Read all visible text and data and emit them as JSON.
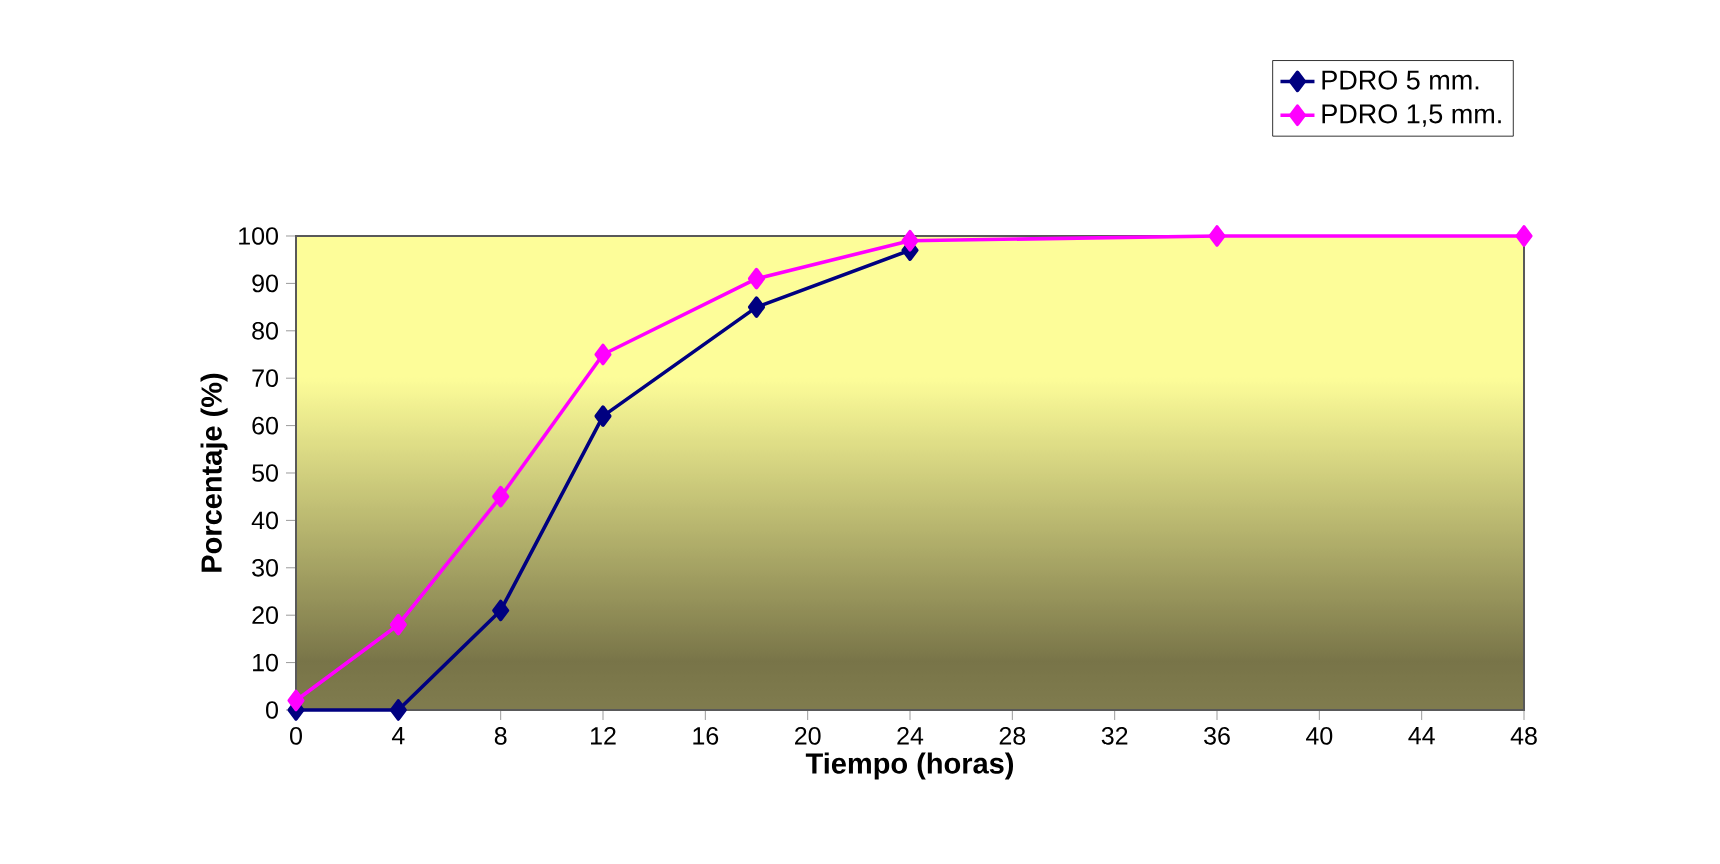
{
  "chart_data": {
    "type": "line",
    "xlabel": "Tiempo (horas)",
    "ylabel": "Porcentaje (%)",
    "x": [
      0,
      4,
      8,
      12,
      18,
      24,
      36,
      48
    ],
    "series": [
      {
        "name": "PDRO 5 mm.",
        "color": "#000080",
        "values": [
          0,
          0,
          21,
          62,
          85,
          97,
          null,
          null
        ]
      },
      {
        "name": "PDRO 1,5 mm.",
        "color": "#ff00ff",
        "values": [
          2,
          18,
          45,
          75,
          91,
          99,
          100,
          100
        ]
      }
    ],
    "xlim": [
      0,
      48
    ],
    "xticks": [
      0,
      4,
      8,
      12,
      16,
      20,
      24,
      28,
      32,
      36,
      40,
      44,
      48
    ],
    "ylim": [
      0,
      100
    ],
    "yticks": [
      0,
      10,
      20,
      30,
      40,
      50,
      60,
      70,
      80,
      90,
      100
    ],
    "grid": false,
    "legend": "top right",
    "marker": "diamond",
    "line_style": "solid"
  }
}
